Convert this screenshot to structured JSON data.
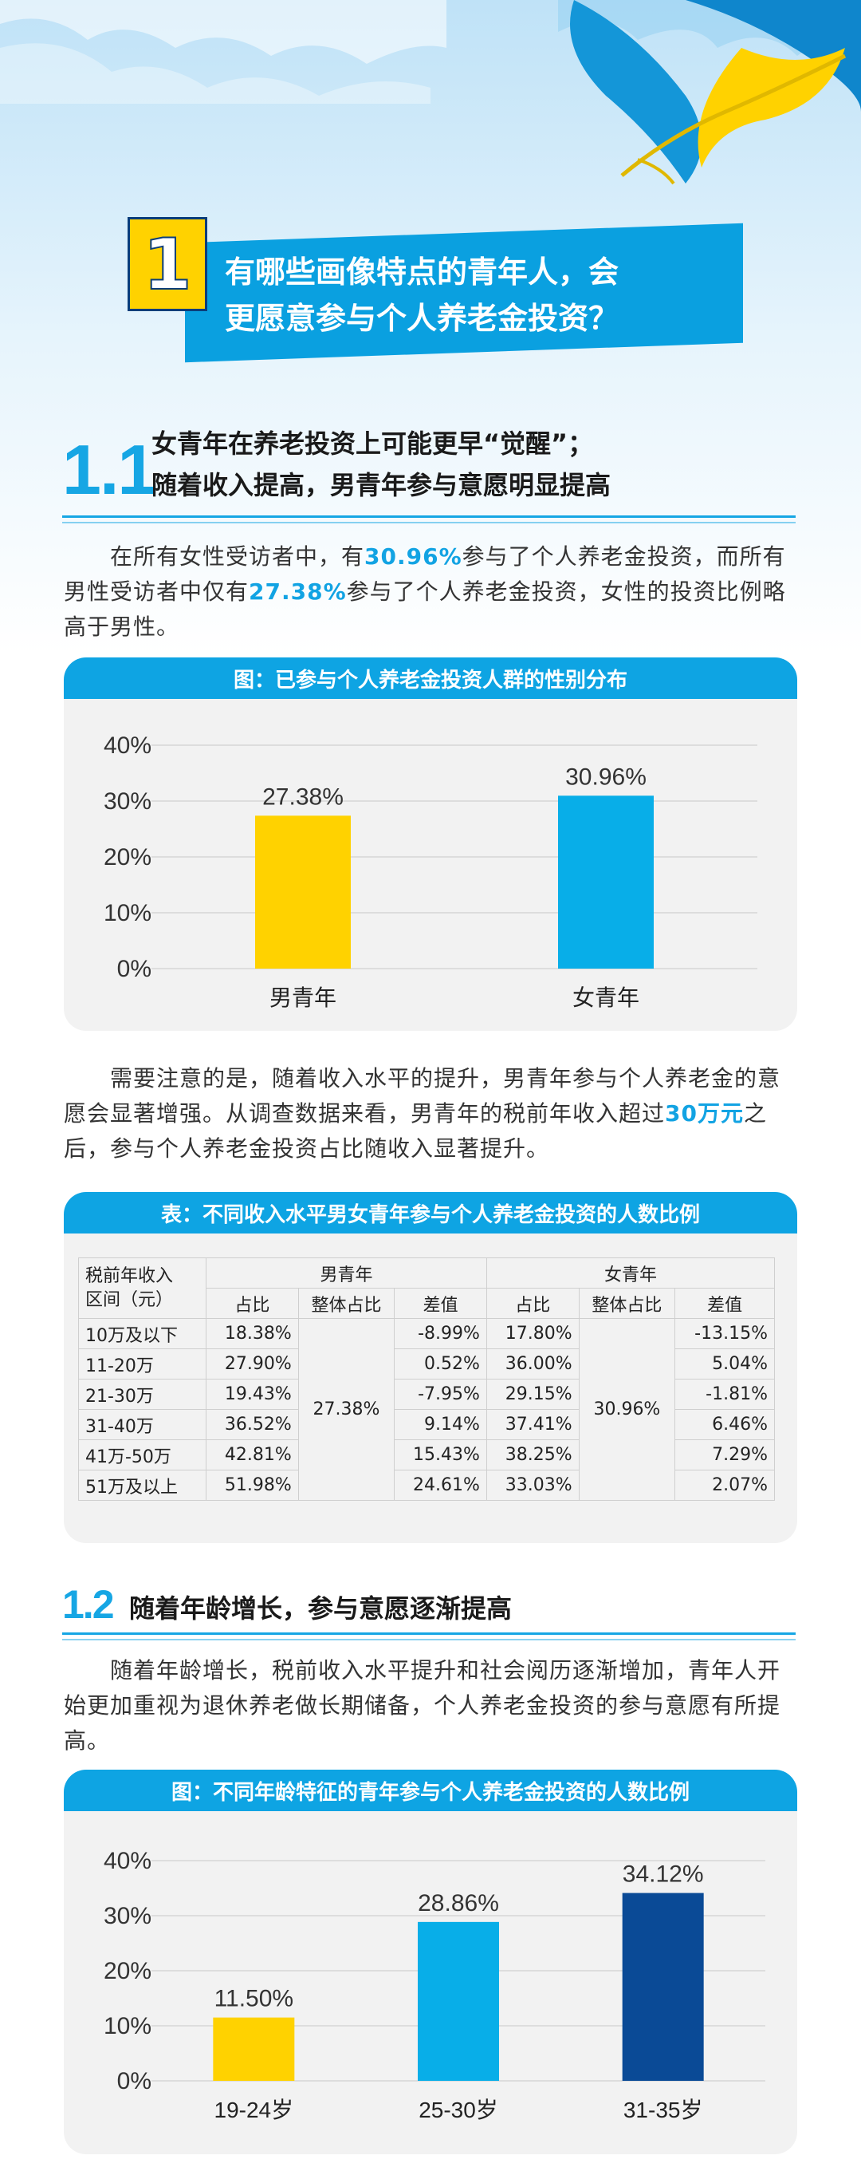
{
  "header": {
    "number": "1",
    "title_line1": "有哪些画像特点的青年人，会",
    "title_line2": "更愿意参与个人养老金投资？"
  },
  "section_1_1": {
    "number": "1.1",
    "title_line1": "女青年在养老投资上可能更早“觉醒”；",
    "title_line2": "随着收入提高，男青年参与意愿明显提高",
    "para1_a": "在所有女性受访者中，有",
    "para1_hl1": "30.96%",
    "para1_b": "参与了个人养老金投资，而所有男性受访者中仅有",
    "para1_hl2": "27.38%",
    "para1_c": "参与了个人养老金投资，女性的投资比例略高于男性。",
    "chart_title": "图：已参与个人养老金投资人群的性别分布",
    "para2_a": "需要注意的是，随着收入水平的提升，男青年参与个人养老金的意愿会显著增强。从调查数据来看，男青年的税前年收入超过",
    "para2_hl": "30万元",
    "para2_b": "之后，参与个人养老金投资占比随收入显著提升。",
    "table_title": "表：不同收入水平男女青年参与个人养老金投资的人数比例"
  },
  "section_1_2": {
    "number": "1.2",
    "title": "随着年龄增长，参与意愿逐渐提高",
    "para": "随着年龄增长，税前收入水平提升和社会阅历逐渐增加，青年人开始更加重视为退休养老做长期储备，个人养老金投资的参与意愿有所提高。",
    "chart_title": "图：不同年龄特征的青年参与个人养老金投资的人数比例"
  },
  "table": {
    "rowhead_line1": "税前年收入",
    "rowhead_line2": "区间（元）",
    "male_group": "男青年",
    "female_group": "女青年",
    "col_share": "占比",
    "col_overall": "整体占比",
    "col_diff": "差值",
    "male_overall": "27.38%",
    "female_overall": "30.96%",
    "rows": [
      {
        "range": "10万及以下",
        "m_share": "18.38%",
        "m_diff": "-8.99%",
        "f_share": "17.80%",
        "f_diff": "-13.15%"
      },
      {
        "range": "11-20万",
        "m_share": "27.90%",
        "m_diff": "0.52%",
        "f_share": "36.00%",
        "f_diff": "5.04%"
      },
      {
        "range": "21-30万",
        "m_share": "19.43%",
        "m_diff": "-7.95%",
        "f_share": "29.15%",
        "f_diff": "-1.81%"
      },
      {
        "range": "31-40万",
        "m_share": "36.52%",
        "m_diff": "9.14%",
        "f_share": "37.41%",
        "f_diff": "6.46%"
      },
      {
        "range": "41万-50万",
        "m_share": "42.81%",
        "m_diff": "15.43%",
        "f_share": "38.25%",
        "f_diff": "7.29%"
      },
      {
        "range": "51万及以上",
        "m_share": "51.98%",
        "m_diff": "24.61%",
        "f_share": "33.03%",
        "f_diff": "2.07%"
      }
    ]
  },
  "colors": {
    "accent": "#12a3e3",
    "yellow": "#ffd200",
    "cyan": "#08aee8",
    "navy": "#0a4a96"
  },
  "chart_data": [
    {
      "type": "bar",
      "title": "图：已参与个人养老金投资人群的性别分布",
      "categories": [
        "男青年",
        "女青年"
      ],
      "values": [
        27.38,
        30.96
      ],
      "value_labels": [
        "27.38%",
        "30.96%"
      ],
      "bar_colors": [
        "#ffd200",
        "#08aee8"
      ],
      "yticks": [
        "0%",
        "10%",
        "20%",
        "30%",
        "40%"
      ],
      "ylim": [
        0,
        40
      ],
      "grid": true
    },
    {
      "type": "bar",
      "title": "图：不同年龄特征的青年参与个人养老金投资的人数比例",
      "categories": [
        "19-24岁",
        "25-30岁",
        "31-35岁"
      ],
      "values": [
        11.5,
        28.86,
        34.12
      ],
      "value_labels": [
        "11.50%",
        "28.86%",
        "34.12%"
      ],
      "bar_colors": [
        "#ffd200",
        "#08aee8",
        "#0a4a96"
      ],
      "yticks": [
        "0%",
        "10%",
        "20%",
        "30%",
        "40%"
      ],
      "ylim": [
        0,
        40
      ],
      "grid": true
    }
  ]
}
